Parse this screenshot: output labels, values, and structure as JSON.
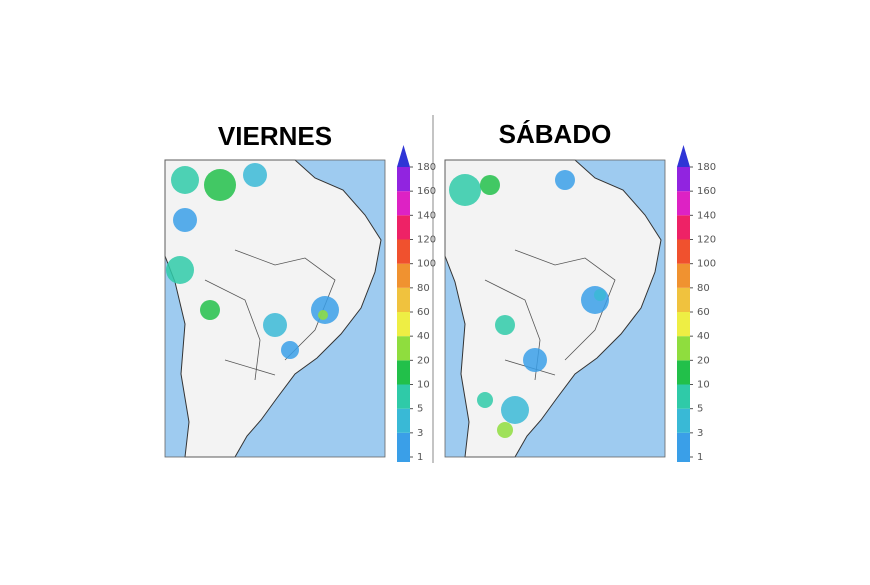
{
  "panels": [
    {
      "title": "VIERNES"
    },
    {
      "title": "SÁBADO"
    }
  ],
  "colorbar": {
    "ticks": [
      "1",
      "3",
      "5",
      "10",
      "20",
      "40",
      "60",
      "80",
      "100",
      "120",
      "140",
      "160",
      "180"
    ],
    "colors": [
      "#3a9fe8",
      "#39b9d6",
      "#2fcaa8",
      "#22c04a",
      "#8fdd3e",
      "#eeee44",
      "#f0c23e",
      "#f09230",
      "#f0512e",
      "#ee2266",
      "#dd22c4",
      "#9124e0"
    ],
    "over_color": "#2f35d6"
  }
}
